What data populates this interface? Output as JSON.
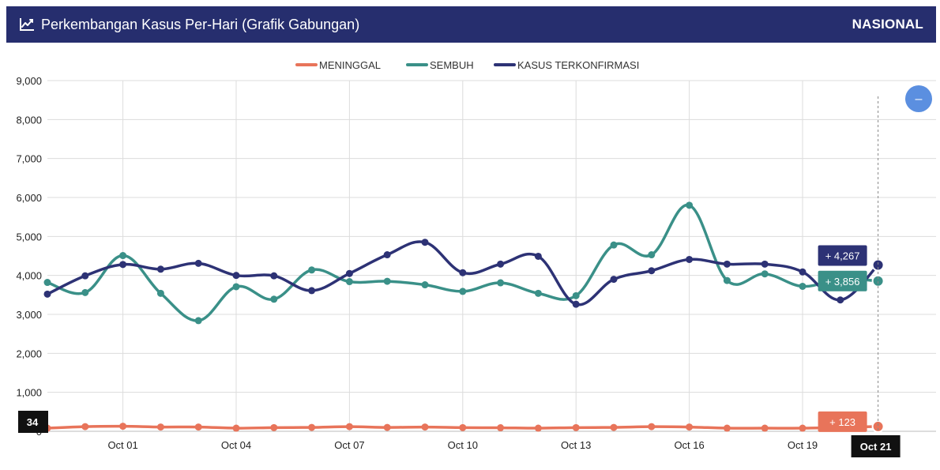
{
  "header": {
    "title": "Perkembangan Kasus Per-Hari (Grafik Gabungan)",
    "region": "NASIONAL",
    "background": "#262e6e",
    "icon": "line-chart-icon"
  },
  "controls": {
    "zoom_icon": "minus-icon",
    "zoom_label": "–",
    "zoom_color": "#5b8fe0"
  },
  "chart_data": {
    "type": "line",
    "x": [
      "Sep 29",
      "Sep 30",
      "Oct 01",
      "Oct 02",
      "Oct 03",
      "Oct 04",
      "Oct 05",
      "Oct 06",
      "Oct 07",
      "Oct 08",
      "Oct 09",
      "Oct 10",
      "Oct 11",
      "Oct 12",
      "Oct 13",
      "Oct 14",
      "Oct 15",
      "Oct 16",
      "Oct 17",
      "Oct 18",
      "Oct 19",
      "Oct 20",
      "Oct 21"
    ],
    "x_tick_labels": [
      "Oct 01",
      "Oct 04",
      "Oct 07",
      "Oct 10",
      "Oct 13",
      "Oct 16",
      "Oct 19"
    ],
    "y_tick_labels": [
      "0",
      "1,000",
      "2,000",
      "3,000",
      "4,000",
      "5,000",
      "6,000",
      "7,000",
      "8,000",
      "9,000"
    ],
    "ylim": [
      0,
      9000
    ],
    "grid": true,
    "legend_position": "top-center",
    "series": [
      {
        "name": "MENINGGAL",
        "color": "#e8745a",
        "values": [
          80,
          120,
          130,
          110,
          110,
          80,
          95,
          100,
          120,
          100,
          110,
          95,
          90,
          80,
          95,
          100,
          120,
          110,
          80,
          80,
          80,
          100,
          123
        ]
      },
      {
        "name": "SEMBUH",
        "color": "#3a9088",
        "values": [
          3820,
          3560,
          4510,
          3540,
          2840,
          3710,
          3390,
          4140,
          3840,
          3850,
          3760,
          3590,
          3810,
          3540,
          3480,
          4780,
          4530,
          5800,
          3870,
          4040,
          3720,
          3910,
          3856
        ]
      },
      {
        "name": "KASUS TERKONFIRMASI",
        "color": "#2d3275",
        "values": [
          3520,
          3990,
          4280,
          4160,
          4310,
          4000,
          3990,
          3610,
          4050,
          4530,
          4850,
          4070,
          4290,
          4490,
          3260,
          3900,
          4120,
          4410,
          4290,
          4290,
          4090,
          3370,
          4267
        ]
      }
    ],
    "tooltips": {
      "x_label": "Oct 21",
      "y_crosshair_label": "34",
      "confirmed": "+ 4,267",
      "recovered": "+ 3,856",
      "deaths": "+ 123"
    }
  }
}
